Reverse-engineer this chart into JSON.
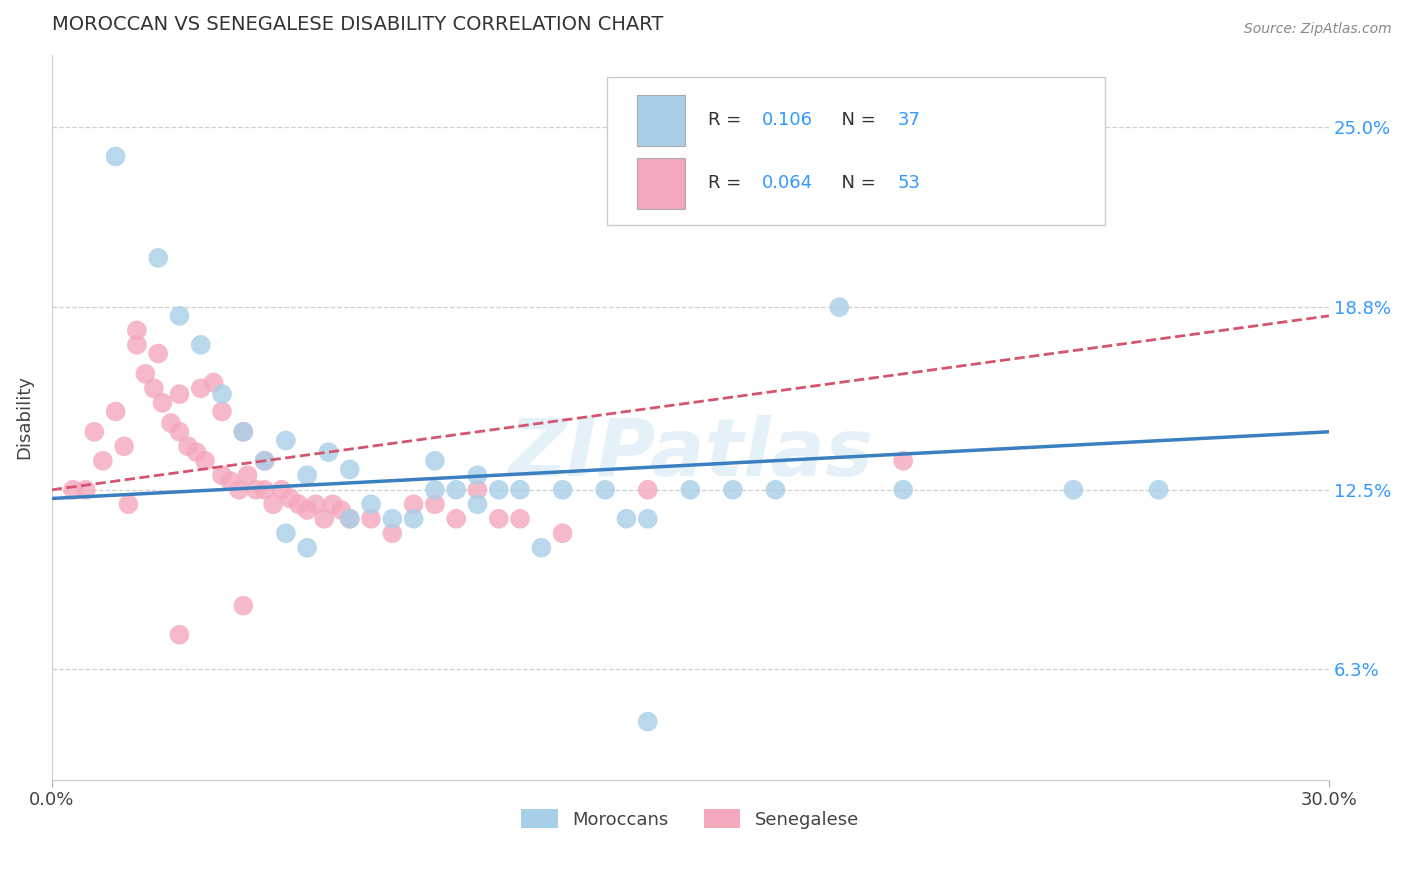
{
  "title": "MOROCCAN VS SENEGALESE DISABILITY CORRELATION CHART",
  "source": "Source: ZipAtlas.com",
  "ylabel": "Disability",
  "ytick_labels": [
    "6.3%",
    "12.5%",
    "18.8%",
    "25.0%"
  ],
  "ytick_values": [
    6.3,
    12.5,
    18.8,
    25.0
  ],
  "xmin": 0.0,
  "xmax": 30.0,
  "ymin": 2.5,
  "ymax": 27.5,
  "moroccan_R": "0.106",
  "moroccan_N": "37",
  "senegalese_R": "0.064",
  "senegalese_N": "53",
  "moroccan_color": "#a8cfe8",
  "senegalese_color": "#f4a8bc",
  "moroccan_line_color": "#3a7fbf",
  "senegalese_line_color": "#d45570",
  "watermark": "ZIPatlas",
  "moroccan_x": [
    1.5,
    2.5,
    3.0,
    3.5,
    4.0,
    4.5,
    5.0,
    5.5,
    6.0,
    6.5,
    7.0,
    7.5,
    8.0,
    9.0,
    9.5,
    10.0,
    10.5,
    11.0,
    11.5,
    12.0,
    13.0,
    14.0,
    15.0,
    16.0,
    17.0,
    18.5,
    20.0,
    24.0,
    26.0,
    13.5,
    5.5,
    6.0,
    7.0,
    8.5,
    9.0,
    10.0,
    14.0
  ],
  "moroccan_y": [
    24.0,
    20.5,
    18.5,
    17.5,
    15.8,
    14.5,
    13.5,
    14.2,
    13.0,
    13.8,
    13.2,
    12.0,
    11.5,
    13.5,
    12.5,
    13.0,
    12.5,
    12.5,
    10.5,
    12.5,
    12.5,
    11.5,
    12.5,
    12.5,
    12.5,
    18.8,
    12.5,
    12.5,
    12.5,
    11.5,
    11.0,
    10.5,
    11.5,
    11.5,
    12.5,
    12.0,
    4.5
  ],
  "senegalese_x": [
    0.5,
    0.8,
    1.0,
    1.2,
    1.5,
    1.7,
    2.0,
    2.0,
    2.2,
    2.4,
    2.5,
    2.6,
    2.8,
    3.0,
    3.0,
    3.2,
    3.4,
    3.5,
    3.6,
    3.8,
    4.0,
    4.0,
    4.2,
    4.4,
    4.5,
    4.6,
    4.8,
    5.0,
    5.0,
    5.2,
    5.4,
    5.6,
    5.8,
    6.0,
    6.2,
    6.4,
    6.6,
    6.8,
    7.0,
    7.5,
    8.0,
    8.5,
    9.0,
    9.5,
    10.0,
    10.5,
    11.0,
    12.0,
    14.0,
    20.0,
    3.0,
    1.8,
    4.5
  ],
  "senegalese_y": [
    12.5,
    12.5,
    14.5,
    13.5,
    15.2,
    14.0,
    18.0,
    17.5,
    16.5,
    16.0,
    17.2,
    15.5,
    14.8,
    14.5,
    15.8,
    14.0,
    13.8,
    16.0,
    13.5,
    16.2,
    13.0,
    15.2,
    12.8,
    12.5,
    14.5,
    13.0,
    12.5,
    12.5,
    13.5,
    12.0,
    12.5,
    12.2,
    12.0,
    11.8,
    12.0,
    11.5,
    12.0,
    11.8,
    11.5,
    11.5,
    11.0,
    12.0,
    12.0,
    11.5,
    12.5,
    11.5,
    11.5,
    11.0,
    12.5,
    13.5,
    7.5,
    12.0,
    8.5
  ]
}
